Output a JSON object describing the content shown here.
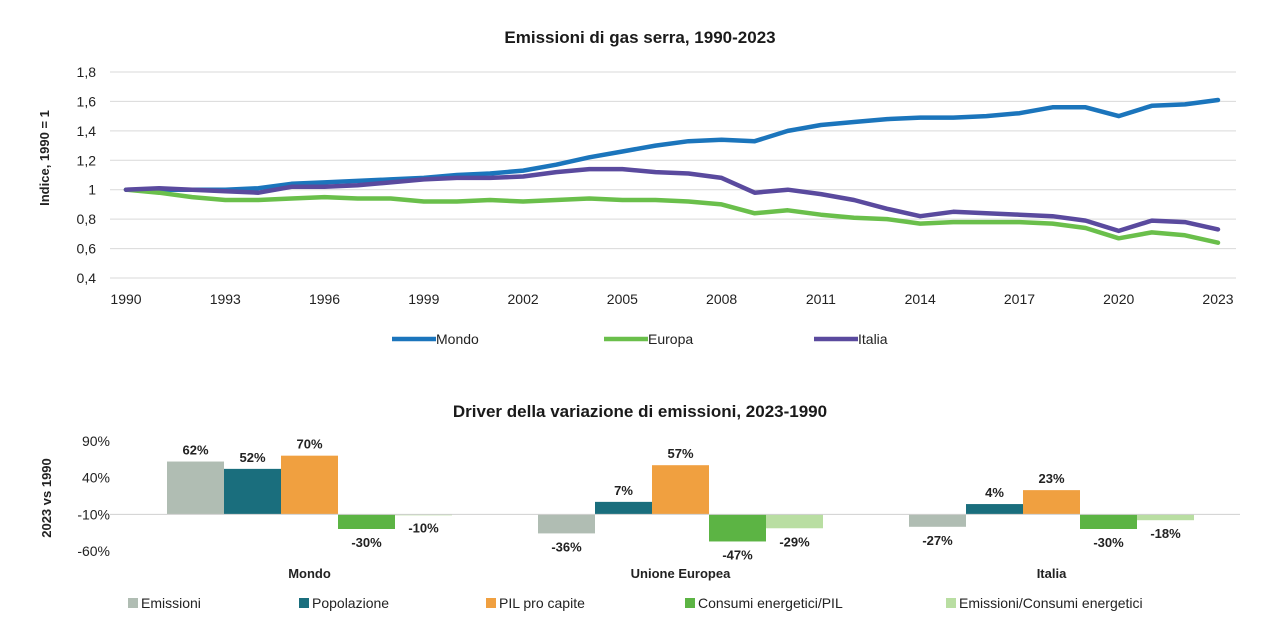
{
  "chart_data": [
    {
      "type": "line",
      "title": "Emissioni di gas serra, 1990-2023",
      "ylabel": "Indice, 1990 = 1",
      "xlabel": "",
      "ylim": [
        0.4,
        1.8
      ],
      "yticks": [
        "0,4",
        "0,6",
        "0,8",
        "1",
        "1,2",
        "1,4",
        "1,6",
        "1,8"
      ],
      "xtick_labels": [
        "1990",
        "1993",
        "1996",
        "1999",
        "2002",
        "2005",
        "2008",
        "2011",
        "2014",
        "2017",
        "2020",
        "2023"
      ],
      "x": [
        1990,
        1991,
        1992,
        1993,
        1994,
        1995,
        1996,
        1997,
        1998,
        1999,
        2000,
        2001,
        2002,
        2003,
        2004,
        2005,
        2006,
        2007,
        2008,
        2009,
        2010,
        2011,
        2012,
        2013,
        2014,
        2015,
        2016,
        2017,
        2018,
        2019,
        2020,
        2021,
        2022,
        2023
      ],
      "grid": true,
      "legend_position": "bottom",
      "series": [
        {
          "name": "Mondo",
          "color": "#1b75bc",
          "values": [
            1.0,
            1.0,
            1.0,
            1.0,
            1.01,
            1.04,
            1.05,
            1.06,
            1.07,
            1.08,
            1.1,
            1.11,
            1.13,
            1.17,
            1.22,
            1.26,
            1.3,
            1.33,
            1.34,
            1.33,
            1.4,
            1.44,
            1.46,
            1.48,
            1.49,
            1.49,
            1.5,
            1.52,
            1.56,
            1.56,
            1.5,
            1.57,
            1.58,
            1.61
          ]
        },
        {
          "name": "Europa",
          "color": "#6abf4b",
          "values": [
            1.0,
            0.98,
            0.95,
            0.93,
            0.93,
            0.94,
            0.95,
            0.94,
            0.94,
            0.92,
            0.92,
            0.93,
            0.92,
            0.93,
            0.94,
            0.93,
            0.93,
            0.92,
            0.9,
            0.84,
            0.86,
            0.83,
            0.81,
            0.8,
            0.77,
            0.78,
            0.78,
            0.78,
            0.77,
            0.74,
            0.67,
            0.71,
            0.69,
            0.64
          ]
        },
        {
          "name": "Italia",
          "color": "#5a4a9e",
          "values": [
            1.0,
            1.01,
            1.0,
            0.99,
            0.98,
            1.02,
            1.02,
            1.03,
            1.05,
            1.07,
            1.08,
            1.08,
            1.09,
            1.12,
            1.14,
            1.14,
            1.12,
            1.11,
            1.08,
            0.98,
            1.0,
            0.97,
            0.93,
            0.87,
            0.82,
            0.85,
            0.84,
            0.83,
            0.82,
            0.79,
            0.72,
            0.79,
            0.78,
            0.73
          ]
        }
      ]
    },
    {
      "type": "bar",
      "title": "Driver della variazione di emissioni, 2023-1990",
      "ylabel": "2023 vs 1990",
      "xlabel": "",
      "ylim": [
        -60,
        90
      ],
      "yticks": [
        "90%",
        "40%",
        "-10%",
        "-60%"
      ],
      "ytick_values": [
        90,
        40,
        -10,
        -60
      ],
      "categories": [
        "Mondo",
        "Unione Europea",
        "Italia"
      ],
      "legend_position": "bottom",
      "series": [
        {
          "name": "Emissioni",
          "color": "#b0bdb3",
          "values": [
            62,
            -36,
            -27
          ],
          "labels": [
            "62%",
            "-36%",
            "-27%"
          ]
        },
        {
          "name": "Popolazione",
          "color": "#1a6e7d",
          "values": [
            52,
            7,
            4
          ],
          "labels": [
            "52%",
            "7%",
            "4%"
          ]
        },
        {
          "name": "PIL pro capite",
          "color": "#f0a040",
          "values": [
            70,
            57,
            23
          ],
          "labels": [
            "70%",
            "57%",
            "23%"
          ]
        },
        {
          "name": "Consumi energetici/PIL",
          "color": "#5cb444",
          "values": [
            -30,
            -47,
            -30
          ],
          "labels": [
            "-30%",
            "-47%",
            "-30%"
          ]
        },
        {
          "name": "Emissioni/Consumi energetici",
          "color": "#b9dea2",
          "values": [
            -10,
            -29,
            -18
          ],
          "labels": [
            "-10%",
            "-29%",
            "-18%"
          ]
        }
      ]
    }
  ]
}
